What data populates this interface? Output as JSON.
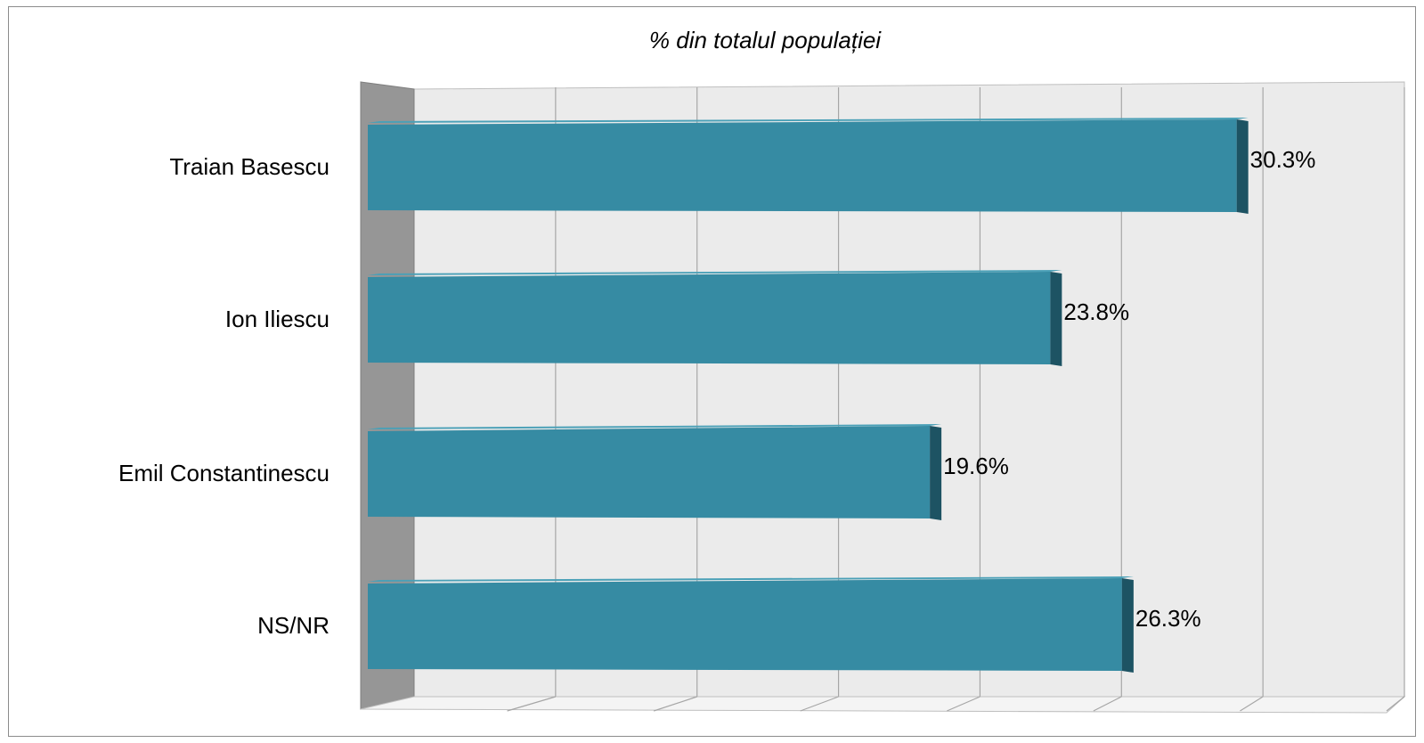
{
  "chart_data": {
    "type": "bar",
    "orientation": "horizontal",
    "style": "3d",
    "title": "% din totalul populației",
    "categories": [
      "Traian Basescu",
      "Ion Iliescu",
      "Emil Constantinescu",
      "NS/NR"
    ],
    "values": [
      30.3,
      23.8,
      19.6,
      26.3
    ],
    "value_labels": [
      "30.3%",
      "23.8%",
      "19.6%",
      "26.3%"
    ],
    "xlim": [
      0,
      35
    ],
    "grid": true,
    "legend": "none",
    "colors": {
      "bar_front": "#368ba3",
      "bar_top": "#4aa0b7",
      "bar_side": "#1d5363",
      "back_wall": "#ebebeb",
      "side_wall": "#969696",
      "floor": "#f4f4f4",
      "gridline": "#a6a6a6"
    }
  }
}
